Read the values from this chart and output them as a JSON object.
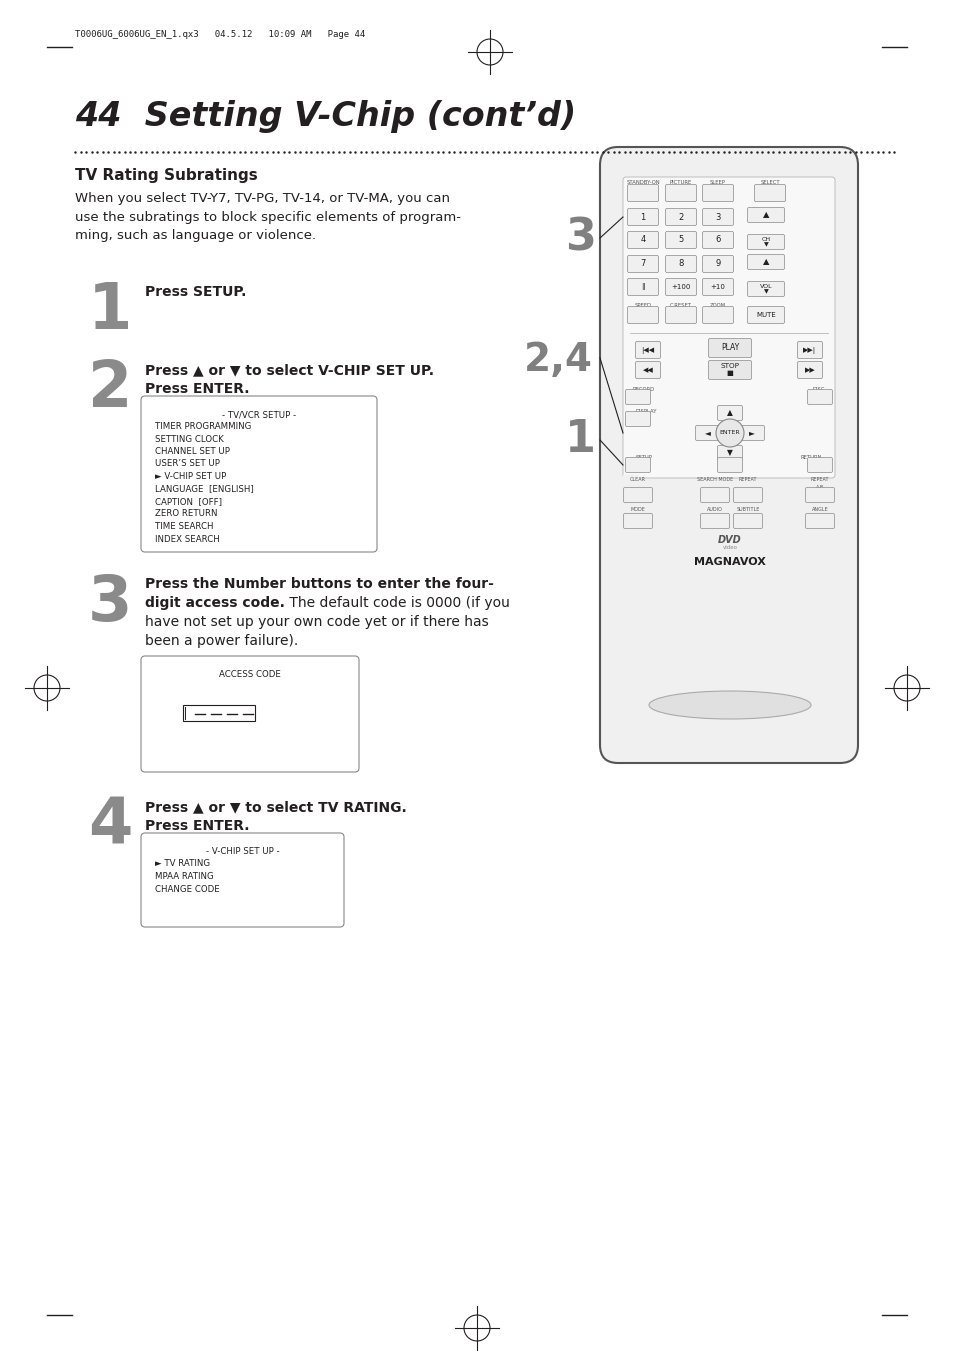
{
  "page_header": "T0006UG_6006UG_EN_1.qx3   04.5.12   10:09 AM   Page 44",
  "title": "44  Setting V-Chip (cont’d)",
  "section_title": "TV Rating Subratings",
  "section_body": "When you select TV-Y7, TV-PG, TV-14, or TV-MA, you can\nuse the subratings to block specific elements of program-\nming, such as language or violence.",
  "step1_num": "1",
  "step1_text_bold": "Press SETUP.",
  "step2_num": "2",
  "step2_line1_bold": "Press ▲ or ▼ to select V-CHIP SET UP.",
  "step2_line2_bold": "Press ENTER.",
  "step2_menu_title": "- TV/VCR SETUP -",
  "step2_menu_items": [
    "TIMER PROGRAMMING",
    "SETTING CLOCK",
    "CHANNEL SET UP",
    "USER’S SET UP",
    "► V-CHIP SET UP",
    "LANGUAGE  [ENGLISH]",
    "CAPTION  [OFF]",
    "ZERO RETURN",
    "TIME SEARCH",
    "INDEX SEARCH"
  ],
  "step3_num": "3",
  "step3_bold": "Press the Number buttons to enter the four-\ndigit access code.",
  "step3_normal": "The default code is 0000 (if you\nhave not set up your own code yet or if there has\nbeen a power failure).",
  "step3_menu_title": "ACCESS CODE",
  "step4_num": "4",
  "step4_line1_bold": "Press ▲ or ▼ to select TV RATING.",
  "step4_line2_bold": "Press ENTER.",
  "step4_menu_title": "- V-CHIP SET UP -",
  "step4_menu_items": [
    "► TV RATING",
    "MPAA RATING",
    "CHANGE CODE"
  ],
  "label3": "3",
  "label24": "2,4",
  "label1": "1",
  "bg_color": "#ffffff",
  "text_color": "#231f20",
  "step_num_color": "#8a8a8a",
  "remote_outline": "#555555",
  "remote_fill": "#e8e8e8",
  "remote_btn_fill": "#f0f0f0",
  "remote_btn_edge": "#888888"
}
